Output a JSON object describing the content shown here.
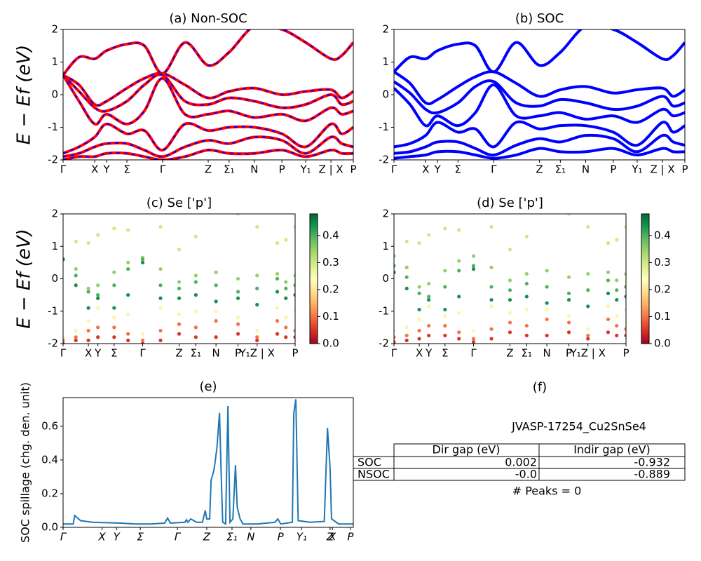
{
  "chart_data": [
    {
      "type": "line",
      "title": "(a) Non-SOC",
      "ylabel": "E − Ef (eV)",
      "color": "#ff0000",
      "dash_color": "#0000ff",
      "xlim": [
        0,
        1
      ],
      "ylim": [
        -2,
        2
      ],
      "yticks": [
        -2,
        -1,
        0,
        1,
        2
      ],
      "xticks": [
        {
          "value": 0,
          "label": "Γ"
        },
        {
          "value": 0.109,
          "label": "X"
        },
        {
          "value": 0.15,
          "label": "Y"
        },
        {
          "value": 0.22,
          "label": "Σ"
        },
        {
          "value": 0.343,
          "label": "Γ"
        },
        {
          "value": 0.5,
          "label": "Z"
        },
        {
          "value": 0.572,
          "label": "Σ₁"
        },
        {
          "value": 0.659,
          "label": "N"
        },
        {
          "value": 0.754,
          "label": "P"
        },
        {
          "value": 0.836,
          "label": "Y₁"
        },
        {
          "value": 0.923,
          "label": "Z | X"
        },
        {
          "value": 1,
          "label": "P"
        }
      ],
      "x": [
        0,
        0.055,
        0.109,
        0.15,
        0.22,
        0.28,
        0.343,
        0.42,
        0.5,
        0.572,
        0.659,
        0.754,
        0.836,
        0.923,
        0.96,
        1
      ],
      "series": [
        {
          "values": [
            0.6,
            1.15,
            1.1,
            1.35,
            1.55,
            1.5,
            0.65,
            1.6,
            0.9,
            1.3,
            2.1,
            2.0,
            1.6,
            1.1,
            1.2,
            1.6
          ]
        },
        {
          "values": [
            0.6,
            0.3,
            -0.3,
            -0.2,
            0.2,
            0.5,
            0.65,
            0.3,
            -0.1,
            0.1,
            0.2,
            0,
            0.1,
            0.15,
            -0.1,
            0.1
          ]
        },
        {
          "values": [
            0.6,
            0.1,
            -0.4,
            -0.5,
            -0.2,
            0.3,
            0.6,
            -0.2,
            -0.3,
            -0.1,
            -0.2,
            -0.4,
            -0.3,
            0,
            -0.3,
            -0.2
          ]
        },
        {
          "values": [
            0.6,
            -0.2,
            -0.9,
            -0.6,
            -0.9,
            -0.5,
            0.5,
            -0.6,
            -0.6,
            -0.5,
            -0.7,
            -0.6,
            -0.8,
            -0.4,
            -0.6,
            -0.5
          ]
        },
        {
          "values": [
            -1.8,
            -1.6,
            -1.3,
            -0.9,
            -1.2,
            -1.1,
            -1.7,
            -0.9,
            -1.1,
            -1.0,
            -1.0,
            -1.2,
            -1.6,
            -0.9,
            -1.2,
            -1.0
          ]
        },
        {
          "values": [
            -1.9,
            -1.8,
            -1.6,
            -1.5,
            -1.5,
            -1.7,
            -1.9,
            -1.6,
            -1.4,
            -1.5,
            -1.3,
            -1.4,
            -1.8,
            -1.3,
            -1.5,
            -1.6
          ]
        },
        {
          "values": [
            -2.0,
            -1.9,
            -1.9,
            -1.8,
            -1.8,
            -1.9,
            -2.0,
            -1.9,
            -1.7,
            -1.8,
            -1.8,
            -1.7,
            -1.9,
            -1.7,
            -1.8,
            -1.8
          ]
        }
      ]
    },
    {
      "type": "line",
      "title": "(b) SOC",
      "color": "#0000ff",
      "xlim": [
        0,
        1
      ],
      "ylim": [
        -2,
        2
      ],
      "yticks": [
        -2,
        -1,
        0,
        1,
        2
      ],
      "xticks": [
        {
          "value": 0,
          "label": "Γ"
        },
        {
          "value": 0.109,
          "label": "X"
        },
        {
          "value": 0.15,
          "label": "Y"
        },
        {
          "value": 0.22,
          "label": "Σ"
        },
        {
          "value": 0.343,
          "label": "Γ"
        },
        {
          "value": 0.5,
          "label": "Z"
        },
        {
          "value": 0.572,
          "label": "Σ₁"
        },
        {
          "value": 0.659,
          "label": "N"
        },
        {
          "value": 0.754,
          "label": "P"
        },
        {
          "value": 0.836,
          "label": "Y₁"
        },
        {
          "value": 0.923,
          "label": "Z | X"
        },
        {
          "value": 1,
          "label": "P"
        }
      ],
      "x": [
        0,
        0.055,
        0.109,
        0.15,
        0.22,
        0.28,
        0.343,
        0.42,
        0.5,
        0.572,
        0.659,
        0.754,
        0.836,
        0.923,
        0.96,
        1
      ],
      "series": [
        {
          "values": [
            0.7,
            1.15,
            1.1,
            1.35,
            1.55,
            1.5,
            0.7,
            1.6,
            0.9,
            1.3,
            2.1,
            2.0,
            1.6,
            1.1,
            1.2,
            1.6
          ]
        },
        {
          "values": [
            0.7,
            0.35,
            -0.25,
            -0.15,
            0.25,
            0.55,
            0.7,
            0.35,
            -0.05,
            0.15,
            0.25,
            0.05,
            0.15,
            0.2,
            -0.05,
            0.15
          ]
        },
        {
          "values": [
            0.4,
            0.05,
            -0.45,
            -0.55,
            -0.25,
            0.25,
            0.4,
            -0.25,
            -0.35,
            -0.15,
            -0.25,
            -0.45,
            -0.35,
            -0.05,
            -0.35,
            -0.25
          ]
        },
        {
          "values": [
            0.2,
            -0.3,
            -0.95,
            -0.65,
            -0.95,
            -0.55,
            0.3,
            -0.65,
            -0.65,
            -0.55,
            -0.75,
            -0.65,
            -0.85,
            -0.45,
            -0.65,
            -0.55
          ]
        },
        {
          "values": [
            -1.6,
            -1.5,
            -1.25,
            -0.85,
            -1.15,
            -1.05,
            -1.6,
            -0.85,
            -1.05,
            -0.95,
            -0.95,
            -1.15,
            -1.55,
            -0.85,
            -1.15,
            -0.95
          ]
        },
        {
          "values": [
            -1.8,
            -1.75,
            -1.6,
            -1.45,
            -1.45,
            -1.65,
            -1.85,
            -1.55,
            -1.35,
            -1.45,
            -1.25,
            -1.35,
            -1.75,
            -1.25,
            -1.45,
            -1.55
          ]
        },
        {
          "values": [
            -1.95,
            -1.9,
            -1.85,
            -1.75,
            -1.75,
            -1.85,
            -1.95,
            -1.85,
            -1.65,
            -1.75,
            -1.75,
            -1.65,
            -1.85,
            -1.65,
            -1.75,
            -1.75
          ]
        }
      ]
    },
    {
      "type": "scatter",
      "title": "(c)  Se ['p']",
      "ylabel": "E − Ef (eV)",
      "xlim": [
        0,
        1
      ],
      "ylim": [
        -2,
        2
      ],
      "yticks": [
        -2,
        -1,
        0,
        1,
        2
      ],
      "clim": [
        0,
        0.48
      ],
      "cticks": [
        {
          "value": 0,
          "label": "0.0"
        },
        {
          "value": 0.1,
          "label": "0.1"
        },
        {
          "value": 0.2,
          "label": "0.2"
        },
        {
          "value": 0.3,
          "label": "0.3"
        },
        {
          "value": 0.4,
          "label": "0.4"
        }
      ],
      "xticks": [
        {
          "value": 0,
          "label": "Γ"
        },
        {
          "value": 0.109,
          "label": "X"
        },
        {
          "value": 0.15,
          "label": "Y"
        },
        {
          "value": 0.22,
          "label": "Σ"
        },
        {
          "value": 0.343,
          "label": "Γ"
        },
        {
          "value": 0.5,
          "label": "Z"
        },
        {
          "value": 0.572,
          "label": "Σ₁"
        },
        {
          "value": 0.659,
          "label": "N"
        },
        {
          "value": 0.754,
          "label": "P"
        },
        {
          "value": 0.836,
          "label": "Y₁Z | X"
        },
        {
          "value": 1,
          "label": "P"
        }
      ],
      "x": [
        0,
        0.055,
        0.109,
        0.15,
        0.22,
        0.28,
        0.343,
        0.42,
        0.5,
        0.572,
        0.659,
        0.754,
        0.836,
        0.923,
        0.96,
        1
      ],
      "series": [
        {
          "weight": 0.3,
          "values": [
            0.6,
            1.15,
            1.1,
            1.35,
            1.55,
            1.5,
            0.65,
            1.6,
            0.9,
            1.3,
            2.1,
            2.0,
            1.6,
            1.1,
            1.2,
            1.6
          ]
        },
        {
          "weight": 0.35,
          "values": [
            0.6,
            0.3,
            -0.3,
            -0.2,
            0.2,
            0.5,
            0.65,
            0.3,
            -0.1,
            0.1,
            0.2,
            0,
            0.1,
            0.15,
            -0.1,
            0.1
          ]
        },
        {
          "weight": 0.4,
          "values": [
            0.6,
            0.1,
            -0.4,
            -0.5,
            -0.2,
            0.3,
            0.6,
            -0.2,
            -0.3,
            -0.1,
            -0.2,
            -0.4,
            -0.3,
            0,
            -0.3,
            -0.2
          ]
        },
        {
          "weight": 0.44,
          "values": [
            0.6,
            -0.2,
            -0.9,
            -0.6,
            -0.9,
            -0.5,
            0.5,
            -0.6,
            -0.6,
            -0.5,
            -0.7,
            -0.6,
            -0.8,
            -0.4,
            -0.6,
            -0.5
          ]
        },
        {
          "weight": 0.22,
          "values": [
            -1.8,
            -1.6,
            -1.3,
            -0.9,
            -1.2,
            -1.1,
            -1.7,
            -0.9,
            -1.1,
            -1.0,
            -1.0,
            -1.2,
            -1.6,
            -0.9,
            -1.2,
            -1.0
          ]
        },
        {
          "weight": 0.1,
          "values": [
            -1.9,
            -1.8,
            -1.6,
            -1.5,
            -1.5,
            -1.7,
            -1.9,
            -1.6,
            -1.4,
            -1.5,
            -1.3,
            -1.4,
            -1.8,
            -1.3,
            -1.5,
            -1.6
          ]
        },
        {
          "weight": 0.05,
          "values": [
            -2.0,
            -1.9,
            -1.9,
            -1.8,
            -1.8,
            -1.9,
            -2.0,
            -1.9,
            -1.7,
            -1.8,
            -1.8,
            -1.7,
            -1.9,
            -1.7,
            -1.8,
            -1.8
          ]
        }
      ]
    },
    {
      "type": "scatter",
      "title": "(d) Se ['p']",
      "xlim": [
        0,
        1
      ],
      "ylim": [
        -2,
        2
      ],
      "yticks": [
        -2,
        -1,
        0,
        1,
        2
      ],
      "clim": [
        0,
        0.48
      ],
      "cticks": [
        {
          "value": 0,
          "label": "0.0"
        },
        {
          "value": 0.1,
          "label": "0.1"
        },
        {
          "value": 0.2,
          "label": "0.2"
        },
        {
          "value": 0.3,
          "label": "0.3"
        },
        {
          "value": 0.4,
          "label": "0.4"
        }
      ],
      "xticks": [
        {
          "value": 0,
          "label": "Γ"
        },
        {
          "value": 0.109,
          "label": "X"
        },
        {
          "value": 0.15,
          "label": "Y"
        },
        {
          "value": 0.22,
          "label": "Σ"
        },
        {
          "value": 0.343,
          "label": "Γ"
        },
        {
          "value": 0.5,
          "label": "Z"
        },
        {
          "value": 0.572,
          "label": "Σ₁"
        },
        {
          "value": 0.659,
          "label": "N"
        },
        {
          "value": 0.754,
          "label": "P"
        },
        {
          "value": 0.836,
          "label": "Y₁Z | X"
        },
        {
          "value": 1,
          "label": "P"
        }
      ],
      "x": [
        0,
        0.055,
        0.109,
        0.15,
        0.22,
        0.28,
        0.343,
        0.42,
        0.5,
        0.572,
        0.659,
        0.754,
        0.836,
        0.923,
        0.96,
        1
      ],
      "series": [
        {
          "weight": 0.3,
          "values": [
            0.7,
            1.15,
            1.1,
            1.35,
            1.55,
            1.5,
            0.7,
            1.6,
            0.9,
            1.3,
            2.1,
            2.0,
            1.6,
            1.1,
            1.2,
            1.6
          ]
        },
        {
          "weight": 0.35,
          "values": [
            0.7,
            0.35,
            -0.25,
            -0.15,
            0.25,
            0.55,
            0.7,
            0.35,
            -0.05,
            0.15,
            0.25,
            0.05,
            0.15,
            0.2,
            -0.05,
            0.15
          ]
        },
        {
          "weight": 0.4,
          "values": [
            0.4,
            0.05,
            -0.45,
            -0.55,
            -0.25,
            0.25,
            0.4,
            -0.25,
            -0.35,
            -0.15,
            -0.25,
            -0.45,
            -0.35,
            -0.05,
            -0.35,
            -0.25
          ]
        },
        {
          "weight": 0.44,
          "values": [
            0.2,
            -0.3,
            -0.95,
            -0.65,
            -0.95,
            -0.55,
            0.3,
            -0.65,
            -0.65,
            -0.55,
            -0.75,
            -0.65,
            -0.85,
            -0.45,
            -0.65,
            -0.55
          ]
        },
        {
          "weight": 0.22,
          "values": [
            -1.6,
            -1.5,
            -1.25,
            -0.85,
            -1.15,
            -1.05,
            -1.6,
            -0.85,
            -1.05,
            -0.95,
            -0.95,
            -1.15,
            -1.55,
            -0.85,
            -1.15,
            -0.95
          ]
        },
        {
          "weight": 0.1,
          "values": [
            -1.8,
            -1.75,
            -1.6,
            -1.45,
            -1.45,
            -1.65,
            -1.85,
            -1.55,
            -1.35,
            -1.45,
            -1.25,
            -1.35,
            -1.75,
            -1.25,
            -1.45,
            -1.55
          ]
        },
        {
          "weight": 0.05,
          "values": [
            -1.95,
            -1.9,
            -1.85,
            -1.75,
            -1.75,
            -1.85,
            -1.95,
            -1.85,
            -1.65,
            -1.75,
            -1.75,
            -1.65,
            -1.85,
            -1.65,
            -1.75,
            -1.75
          ]
        }
      ]
    },
    {
      "type": "line",
      "title": "(e)",
      "ylabel": "SOC spillage (chg. den. unit)",
      "color": "#1f77b4",
      "italic_x": true,
      "xlim": [
        0,
        1
      ],
      "ylim": [
        0,
        0.77
      ],
      "yticks": [
        {
          "value": 0,
          "label": "0.0"
        },
        {
          "value": 0.2,
          "label": "0.2"
        },
        {
          "value": 0.4,
          "label": "0.4"
        },
        {
          "value": 0.6,
          "label": "0.6"
        }
      ],
      "xticks": [
        {
          "value": 0,
          "label": "Γ"
        },
        {
          "value": 0.134,
          "label": "X"
        },
        {
          "value": 0.184,
          "label": "Y"
        },
        {
          "value": 0.266,
          "label": "Σ"
        },
        {
          "value": 0.394,
          "label": "Γ"
        },
        {
          "value": 0.495,
          "label": "Z"
        },
        {
          "value": 0.582,
          "label": "Σ₁"
        },
        {
          "value": 0.647,
          "label": "N"
        },
        {
          "value": 0.749,
          "label": "P"
        },
        {
          "value": 0.822,
          "label": "Y₁"
        },
        {
          "value": 0.92,
          "label": "Z"
        },
        {
          "value": 0.928,
          "label": "X"
        },
        {
          "value": 0.99,
          "label": "P"
        }
      ],
      "x": [
        0,
        0.035,
        0.04,
        0.06,
        0.1,
        0.2,
        0.25,
        0.3,
        0.35,
        0.36,
        0.37,
        0.42,
        0.425,
        0.43,
        0.44,
        0.46,
        0.48,
        0.49,
        0.495,
        0.505,
        0.51,
        0.52,
        0.53,
        0.539,
        0.545,
        0.55,
        0.56,
        0.568,
        0.575,
        0.585,
        0.594,
        0.6,
        0.61,
        0.62,
        0.67,
        0.7,
        0.73,
        0.74,
        0.75,
        0.79,
        0.795,
        0.802,
        0.81,
        0.85,
        0.9,
        0.911,
        0.92,
        0.925,
        0.95,
        1
      ],
      "series": [
        {
          "values": [
            0.02,
            0.02,
            0.07,
            0.04,
            0.03,
            0.025,
            0.02,
            0.02,
            0.025,
            0.055,
            0.025,
            0.03,
            0.045,
            0.03,
            0.05,
            0.03,
            0.03,
            0.1,
            0.05,
            0.05,
            0.28,
            0.34,
            0.47,
            0.68,
            0.3,
            0.03,
            0.02,
            0.72,
            0.03,
            0.05,
            0.37,
            0.12,
            0.05,
            0.02,
            0.02,
            0.025,
            0.03,
            0.05,
            0.02,
            0.03,
            0.68,
            0.76,
            0.04,
            0.03,
            0.035,
            0.59,
            0.35,
            0.05,
            0.02,
            0.02
          ]
        }
      ]
    }
  ],
  "panel_f": {
    "title": "(f)",
    "subtitle": "JVASP-17254_Cu2SnSe4",
    "note": "# Peaks = 0",
    "table": {
      "header": [
        "Dir gap (eV)",
        "Indir gap (eV)"
      ],
      "rows": [
        [
          "SOC",
          "0.002",
          "-0.932"
        ],
        [
          "NSOC",
          "-0.0",
          "-0.889"
        ]
      ]
    }
  }
}
